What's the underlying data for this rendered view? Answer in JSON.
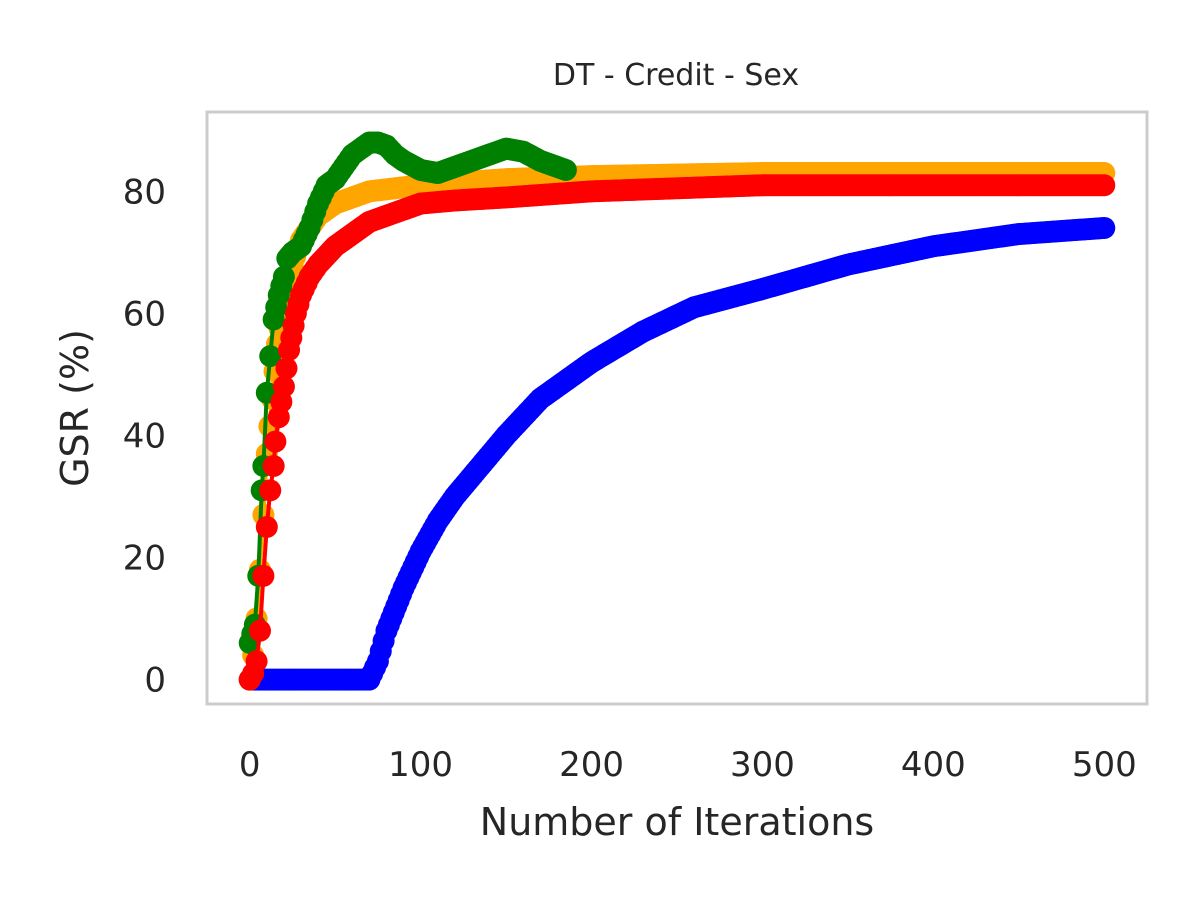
{
  "chart_data": {
    "type": "line",
    "title": "DT - Credit - Sex",
    "xlabel": "Number of Iterations",
    "ylabel": "GSR (%)",
    "xlim": [
      -25,
      525
    ],
    "ylim": [
      -4,
      93
    ],
    "xticks": [
      0,
      100,
      200,
      300,
      400,
      500
    ],
    "yticks": [
      0,
      20,
      40,
      60,
      80
    ],
    "grid": false,
    "legend": "none",
    "series": [
      {
        "color": "#0000ff",
        "points": [
          [
            0,
            0
          ],
          [
            70,
            0
          ],
          [
            75,
            3
          ],
          [
            80,
            8
          ],
          [
            90,
            15
          ],
          [
            100,
            21
          ],
          [
            110,
            26
          ],
          [
            120,
            30
          ],
          [
            135,
            35
          ],
          [
            150,
            40
          ],
          [
            170,
            46
          ],
          [
            200,
            52
          ],
          [
            230,
            57
          ],
          [
            260,
            61
          ],
          [
            300,
            64
          ],
          [
            350,
            68
          ],
          [
            400,
            71
          ],
          [
            450,
            73
          ],
          [
            500,
            74
          ]
        ]
      },
      {
        "color": "#ffa500",
        "points": [
          [
            0,
            0
          ],
          [
            2,
            4
          ],
          [
            4,
            10
          ],
          [
            6,
            18
          ],
          [
            8,
            27
          ],
          [
            10,
            37
          ],
          [
            13,
            46
          ],
          [
            16,
            55
          ],
          [
            20,
            63
          ],
          [
            25,
            68
          ],
          [
            30,
            72
          ],
          [
            40,
            76
          ],
          [
            50,
            78
          ],
          [
            70,
            80
          ],
          [
            100,
            81
          ],
          [
            150,
            82
          ],
          [
            200,
            82.5
          ],
          [
            300,
            83
          ],
          [
            400,
            83
          ],
          [
            500,
            83
          ]
        ]
      },
      {
        "color": "#008000",
        "points": [
          [
            0,
            6
          ],
          [
            3,
            9
          ],
          [
            5,
            17
          ],
          [
            7,
            31
          ],
          [
            8,
            35
          ],
          [
            10,
            47
          ],
          [
            12,
            53
          ],
          [
            14,
            59
          ],
          [
            17,
            63
          ],
          [
            20,
            66
          ],
          [
            22,
            69
          ],
          [
            25,
            70
          ],
          [
            30,
            71
          ],
          [
            35,
            74
          ],
          [
            40,
            78
          ],
          [
            45,
            81
          ],
          [
            50,
            82
          ],
          [
            55,
            84
          ],
          [
            60,
            86
          ],
          [
            65,
            87
          ],
          [
            70,
            88
          ],
          [
            75,
            88
          ],
          [
            80,
            87.5
          ],
          [
            85,
            86
          ],
          [
            90,
            85
          ],
          [
            100,
            83.5
          ],
          [
            110,
            83
          ],
          [
            120,
            84
          ],
          [
            130,
            85
          ],
          [
            140,
            86
          ],
          [
            150,
            87
          ],
          [
            160,
            86.5
          ],
          [
            170,
            85
          ],
          [
            180,
            84
          ],
          [
            185,
            83.5
          ]
        ]
      },
      {
        "color": "#ff0000",
        "points": [
          [
            0,
            0
          ],
          [
            2,
            1
          ],
          [
            4,
            3
          ],
          [
            6,
            8
          ],
          [
            8,
            17
          ],
          [
            10,
            25
          ],
          [
            12,
            31
          ],
          [
            14,
            35
          ],
          [
            15,
            39
          ],
          [
            17,
            43
          ],
          [
            20,
            48
          ],
          [
            23,
            54
          ],
          [
            27,
            60
          ],
          [
            30,
            63
          ],
          [
            35,
            66
          ],
          [
            40,
            68
          ],
          [
            50,
            71
          ],
          [
            60,
            73
          ],
          [
            70,
            75
          ],
          [
            80,
            76
          ],
          [
            90,
            77
          ],
          [
            100,
            78
          ],
          [
            120,
            78.5
          ],
          [
            150,
            79
          ],
          [
            200,
            80
          ],
          [
            250,
            80.5
          ],
          [
            300,
            81
          ],
          [
            400,
            81
          ],
          [
            500,
            81
          ]
        ]
      }
    ]
  }
}
